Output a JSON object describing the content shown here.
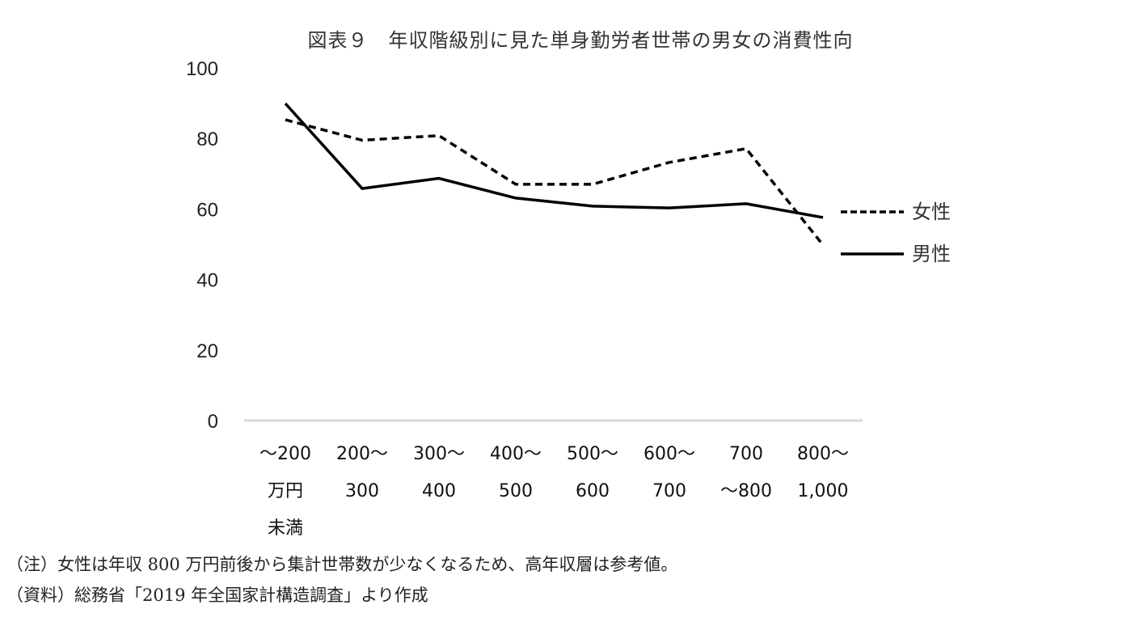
{
  "title": "図表９　年収階級別に見た単身勤労者世帯の男女の消費性向",
  "notes": {
    "note1": "（注）女性は年収 800 万円前後から集計世帯数が少なくなるため、高年収層は参考値。",
    "note2": "（資料）総務省「2019 年全国家計構造調査」より作成"
  },
  "legend": {
    "female": "女性",
    "male": "男性"
  },
  "y_ticks": [
    "100",
    "80",
    "60",
    "40",
    "20",
    "0"
  ],
  "x_ticks": [
    {
      "line1": "～200",
      "line2": "万円",
      "line3": "未満"
    },
    {
      "line1": "200～",
      "line2": "300",
      "line3": ""
    },
    {
      "line1": "300～",
      "line2": "400",
      "line3": ""
    },
    {
      "line1": "400～",
      "line2": "500",
      "line3": ""
    },
    {
      "line1": "500～",
      "line2": "600",
      "line3": ""
    },
    {
      "line1": "600～",
      "line2": "700",
      "line3": ""
    },
    {
      "line1": "700",
      "line2": "～800",
      "line3": ""
    },
    {
      "line1": "800～",
      "line2": "1,000",
      "line3": ""
    }
  ],
  "colors": {
    "line": "#000000",
    "axis": "#d9d9d9"
  },
  "chart_data": {
    "type": "line",
    "title": "図表９　年収階級別に見た単身勤労者世帯の男女の消費性向",
    "categories": [
      "～200万円未満",
      "200～300",
      "300～400",
      "400～500",
      "500～600",
      "600～700",
      "700～800",
      "800～1,000"
    ],
    "series": [
      {
        "name": "女性",
        "style": "dashed",
        "values": [
          85.3,
          79.5,
          80.8,
          67.0,
          67.0,
          73.2,
          77.1,
          49.8
        ]
      },
      {
        "name": "男性",
        "style": "solid",
        "values": [
          89.9,
          65.8,
          68.7,
          63.1,
          60.8,
          60.3,
          61.5,
          57.6
        ]
      }
    ],
    "xlabel": "",
    "ylabel": "",
    "ylim": [
      0,
      100
    ],
    "yticks": [
      0,
      20,
      40,
      60,
      80,
      100
    ],
    "grid": false,
    "legend_position": "right",
    "annotations": [
      "（注）女性は年収 800 万円前後から集計世帯数が少なくなるため、高年収層は参考値。",
      "（資料）総務省「2019 年全国家計構造調査」より作成"
    ]
  }
}
